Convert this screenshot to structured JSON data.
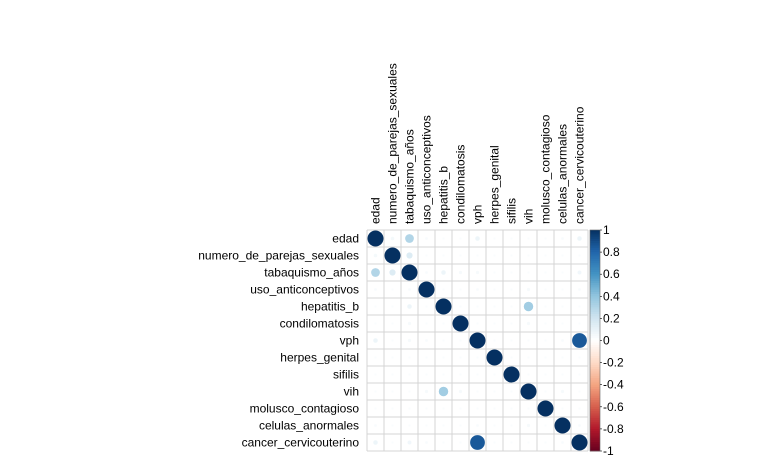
{
  "chart_data": {
    "type": "heatmap",
    "subtype": "correlation-circle-lower-upper",
    "variables": [
      "edad",
      "numero_de_parejas_sexuales",
      "tabaquismo_años",
      "uso_anticonceptivos",
      "hepatitis_b",
      "condilomatosis",
      "vph",
      "herpes_genital",
      "sifilis",
      "vih",
      "molusco_contagioso",
      "celulas_anormales",
      "cancer_cervicouterino"
    ],
    "matrix": [
      [
        1.0,
        0.05,
        0.3,
        0.03,
        0.02,
        0.02,
        0.08,
        0.02,
        0.02,
        0.02,
        0.02,
        0.03,
        0.08
      ],
      [
        0.05,
        1.0,
        0.15,
        0.02,
        0.02,
        0.02,
        0.02,
        0.02,
        0.02,
        0.02,
        0.02,
        0.02,
        0.02
      ],
      [
        0.3,
        0.15,
        1.0,
        0.03,
        0.08,
        0.04,
        0.04,
        0.02,
        0.02,
        0.02,
        0.02,
        0.02,
        0.06
      ],
      [
        0.03,
        0.02,
        0.03,
        1.0,
        0.02,
        0.02,
        0.03,
        0.02,
        0.02,
        0.04,
        0.02,
        0.02,
        0.03
      ],
      [
        0.02,
        0.02,
        0.08,
        0.02,
        1.0,
        0.02,
        0.02,
        0.02,
        0.02,
        0.35,
        0.02,
        0.02,
        0.02
      ],
      [
        0.02,
        0.02,
        0.04,
        0.02,
        0.02,
        1.0,
        0.02,
        0.02,
        0.02,
        0.04,
        0.02,
        0.02,
        0.02
      ],
      [
        0.08,
        0.02,
        0.04,
        0.03,
        0.02,
        0.02,
        1.0,
        0.02,
        0.02,
        0.02,
        0.02,
        0.03,
        0.85
      ],
      [
        0.02,
        0.02,
        0.02,
        0.02,
        0.02,
        0.02,
        0.02,
        1.0,
        0.02,
        0.02,
        0.02,
        0.02,
        0.02
      ],
      [
        0.02,
        0.02,
        0.02,
        0.02,
        0.02,
        0.02,
        0.02,
        0.02,
        1.0,
        0.02,
        0.02,
        0.02,
        0.02
      ],
      [
        0.02,
        0.02,
        0.02,
        0.04,
        0.35,
        0.04,
        0.02,
        0.02,
        0.02,
        1.0,
        0.02,
        0.04,
        0.02
      ],
      [
        0.02,
        0.02,
        0.02,
        0.02,
        0.02,
        0.02,
        0.02,
        0.02,
        0.02,
        0.02,
        1.0,
        0.02,
        0.02
      ],
      [
        0.03,
        0.02,
        0.02,
        0.02,
        0.02,
        0.02,
        0.03,
        0.02,
        0.02,
        0.04,
        0.02,
        1.0,
        0.03
      ],
      [
        0.08,
        0.02,
        0.06,
        0.03,
        0.02,
        0.02,
        0.85,
        0.02,
        0.02,
        0.02,
        0.02,
        0.03,
        1.0
      ]
    ],
    "color_scale": {
      "min": -1,
      "max": 1,
      "ticks": [
        "1",
        "0.8",
        "0.6",
        "0.4",
        "0.2",
        "0",
        "-0.2",
        "-0.4",
        "-0.6",
        "-0.8",
        "-1"
      ],
      "neg_color": "#67001F",
      "mid_color": "#FFFFFF",
      "pos_color": "#053061"
    },
    "grid": true,
    "legend": "right"
  }
}
